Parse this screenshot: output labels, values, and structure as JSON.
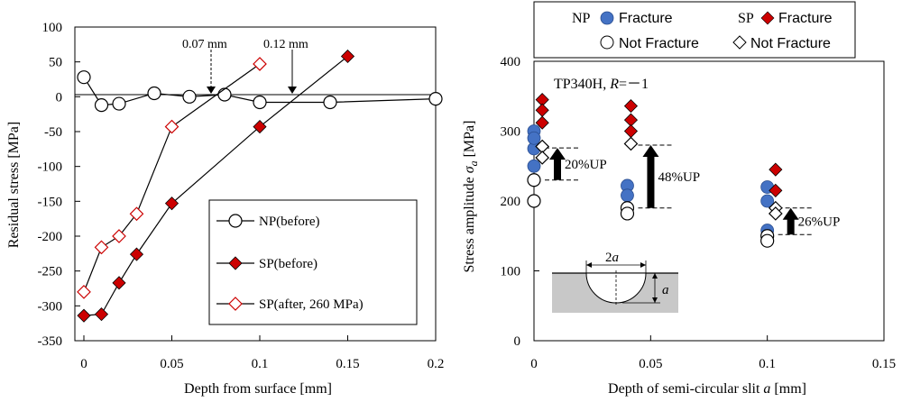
{
  "chart_data": [
    {
      "type": "line",
      "xlabel": "Depth from surface [mm]",
      "ylabel": "Residual stress [MPa]",
      "xlim": [
        0,
        0.2
      ],
      "ylim": [
        -350,
        100
      ],
      "xticks": [
        0,
        0.05,
        0.1,
        0.15,
        0.2
      ],
      "xtick_labels": [
        "0",
        "0.05",
        "0.1",
        "0.15",
        "0.2"
      ],
      "yticks": [
        100,
        50,
        0,
        -50,
        -100,
        -150,
        -200,
        -250,
        -300,
        -350
      ],
      "ytick_labels": [
        "100",
        "50",
        "0",
        "-50",
        "-100",
        "-150",
        "-200",
        "-250",
        "-300",
        "-350"
      ],
      "grid": false,
      "legend_position": "bottom-right",
      "series": [
        {
          "name": "NP(before)",
          "marker": "circle-open",
          "color": "#000000",
          "x": [
            0,
            0.01,
            0.02,
            0.04,
            0.06,
            0.08,
            0.1,
            0.14,
            0.2
          ],
          "y": [
            28,
            -12,
            -10,
            5,
            0,
            3,
            -8,
            -8,
            -3
          ]
        },
        {
          "name": "SP(before)",
          "marker": "diamond-filled",
          "color": "#cc0000",
          "x": [
            0,
            0.01,
            0.02,
            0.03,
            0.05,
            0.1,
            0.15
          ],
          "y": [
            -314,
            -312,
            -267,
            -226,
            -153,
            -43,
            58
          ]
        },
        {
          "name": "SP(after, 260 MPa)",
          "marker": "diamond-open",
          "color": "#cc0000",
          "x": [
            0,
            0.01,
            0.02,
            0.03,
            0.05,
            0.1
          ],
          "y": [
            -280,
            -216,
            -200,
            -168,
            -43,
            47
          ]
        }
      ],
      "annotations": [
        {
          "text": "0.07 mm",
          "x": 0.073,
          "y": 0,
          "style": "dashed-arrow"
        },
        {
          "text": "0.12 mm",
          "x": 0.12,
          "y": 0,
          "style": "solid-arrow"
        }
      ]
    },
    {
      "type": "scatter",
      "xlabel": "Depth of semi-circular slit a [mm]",
      "ylabel": "Stress amplitude σa [MPa]",
      "xlim": [
        0,
        0.15
      ],
      "ylim": [
        0,
        400
      ],
      "xticks": [
        0,
        0.05,
        0.1,
        0.15
      ],
      "xtick_labels": [
        "0",
        "0.05",
        "0.1",
        "0.15"
      ],
      "yticks": [
        0,
        100,
        200,
        300,
        400
      ],
      "ytick_labels": [
        "0",
        "100",
        "200",
        "300",
        "400"
      ],
      "grid": false,
      "legend_position": "top",
      "legend": {
        "np_label": "NP",
        "sp_label": "SP",
        "fracture": "Fracture",
        "not_fracture": "Not Fracture"
      },
      "material_label": "TP340H, ",
      "r_label": "R",
      "r_value": "=－1",
      "series": [
        {
          "name": "NP Fracture",
          "marker": "circle-filled",
          "color": "#4472c4",
          "x": [
            0.0,
            0.0,
            0.0,
            0.0,
            0.04,
            0.04,
            0.1,
            0.1,
            0.1
          ],
          "y": [
            300,
            275,
            250,
            290,
            222,
            208,
            220,
            200,
            158
          ]
        },
        {
          "name": "NP Not Fracture",
          "marker": "circle-open",
          "color": "#000000",
          "x": [
            0.0,
            0.0,
            0.04,
            0.04,
            0.1,
            0.1
          ],
          "y": [
            230,
            200,
            190,
            182,
            150,
            143
          ]
        },
        {
          "name": "SP Fracture",
          "marker": "diamond-filled",
          "color": "#cc0000",
          "x": [
            0.002,
            0.002,
            0.002,
            0.04,
            0.04,
            0.04,
            0.102,
            0.102
          ],
          "y": [
            345,
            330,
            312,
            336,
            316,
            300,
            245,
            215
          ]
        },
        {
          "name": "SP Not Fracture",
          "marker": "diamond-open",
          "color": "#000000",
          "x": [
            0.002,
            0.002,
            0.04,
            0.102,
            0.102
          ],
          "y": [
            278,
            262,
            282,
            190,
            182
          ]
        }
      ],
      "annotations": [
        {
          "text": "20%UP",
          "x": 0.0,
          "base": 230,
          "top": 276
        },
        {
          "text": "48%UP",
          "x": 0.04,
          "base": 190,
          "top": 280
        },
        {
          "text": "26%UP",
          "x": 0.1,
          "base": 152,
          "top": 190
        }
      ],
      "inset": {
        "width_label": "2",
        "width_var": "a",
        "depth_label": "a"
      }
    }
  ]
}
